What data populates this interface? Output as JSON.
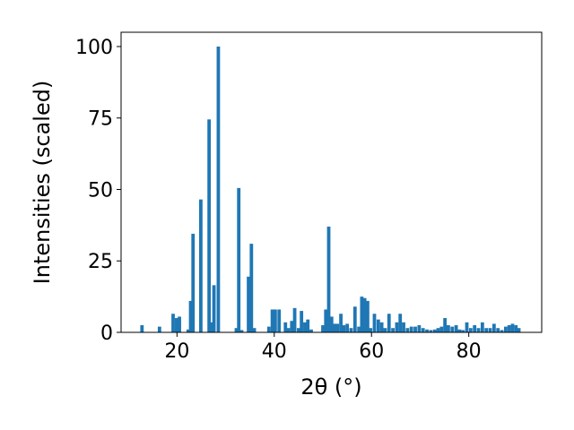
{
  "chart_data": {
    "type": "bar",
    "xlabel": "2θ (°)",
    "ylabel": "Intensities (scaled)",
    "xlim": [
      8.5,
      95
    ],
    "ylim": [
      0,
      105
    ],
    "xticks": [
      20,
      40,
      60,
      80
    ],
    "yticks": [
      0,
      25,
      50,
      75,
      100
    ],
    "bar_color": "#1f77b4",
    "bar_width": 0.7,
    "grid": false,
    "legend": "none",
    "x": [
      12.8,
      16.4,
      19.2,
      19.9,
      20.5,
      22.3,
      22.8,
      23.3,
      24.9,
      26.6,
      27.1,
      27.6,
      28.5,
      32.2,
      32.7,
      33.3,
      34.7,
      35.3,
      35.9,
      38.9,
      39.6,
      40.2,
      41.0,
      42.3,
      42.9,
      43.6,
      44.2,
      45.0,
      45.6,
      46.3,
      46.9,
      47.6,
      50.0,
      50.6,
      51.2,
      51.8,
      52.4,
      53.0,
      53.7,
      54.3,
      55.0,
      55.8,
      56.6,
      57.4,
      58.0,
      58.6,
      59.2,
      59.8,
      60.6,
      61.4,
      62.1,
      62.8,
      63.6,
      64.4,
      65.2,
      65.9,
      66.6,
      67.4,
      68.2,
      69.0,
      69.8,
      70.6,
      71.4,
      72.2,
      73.0,
      73.7,
      74.4,
      75.1,
      75.8,
      76.6,
      77.4,
      78.1,
      78.8,
      79.6,
      80.4,
      81.2,
      82.0,
      82.8,
      83.6,
      84.4,
      85.2,
      86.0,
      86.8,
      87.6,
      88.3,
      89.0,
      89.7,
      90.3
    ],
    "values": [
      2.5,
      2,
      6.5,
      5,
      5.5,
      1,
      11,
      34.5,
      46.5,
      74.5,
      3.5,
      16.5,
      100,
      1.5,
      50.5,
      0.8,
      19.5,
      31,
      1.5,
      2,
      8,
      8,
      8,
      3.5,
      1.5,
      4,
      8.5,
      1.5,
      7.5,
      3.5,
      4.5,
      1,
      2.5,
      8,
      37,
      5.5,
      3,
      3,
      6.5,
      2.5,
      3,
      1.5,
      9,
      2,
      12.5,
      12,
      11,
      1.5,
      6.5,
      4.5,
      3.5,
      1.5,
      6.5,
      1.5,
      3.5,
      6.5,
      3.5,
      1.5,
      2,
      2,
      2.5,
      1.5,
      1,
      0.8,
      1,
      1.5,
      2,
      5,
      2.5,
      2,
      2.5,
      1,
      0.8,
      3.5,
      1.5,
      2.5,
      1.5,
      3.5,
      1.5,
      1.5,
      3,
      1.5,
      0.8,
      2,
      2.5,
      3,
      2.5,
      1.5
    ]
  }
}
